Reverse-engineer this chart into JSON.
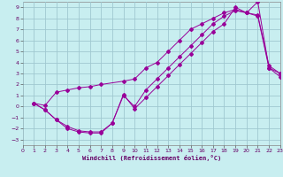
{
  "xlabel": "Windchill (Refroidissement éolien,°C)",
  "background_color": "#c8eef0",
  "grid_color": "#a0c8d0",
  "line_color": "#990099",
  "xlim": [
    0,
    23
  ],
  "ylim": [
    -3.5,
    9.5
  ],
  "xticks": [
    0,
    1,
    2,
    3,
    4,
    5,
    6,
    7,
    8,
    9,
    10,
    11,
    12,
    13,
    14,
    15,
    16,
    17,
    18,
    19,
    20,
    21,
    22,
    23
  ],
  "yticks": [
    -3,
    -2,
    -1,
    0,
    1,
    2,
    3,
    4,
    5,
    6,
    7,
    8,
    9
  ],
  "series1_x": [
    1,
    2,
    3,
    4,
    5,
    6,
    7,
    9,
    10,
    11,
    12,
    13,
    14,
    15,
    16,
    17,
    18,
    19,
    20,
    21,
    22,
    23
  ],
  "series1_y": [
    0.3,
    0.1,
    1.3,
    1.5,
    1.7,
    1.8,
    2.0,
    2.3,
    2.5,
    3.5,
    4.0,
    5.0,
    6.0,
    7.0,
    7.5,
    8.0,
    8.5,
    8.8,
    8.5,
    8.2,
    3.5,
    3.0
  ],
  "series2_x": [
    1,
    2,
    3,
    4,
    5,
    6,
    7,
    8,
    9,
    10,
    11,
    12,
    13,
    14,
    15,
    16,
    17,
    18,
    19,
    20,
    21,
    22,
    23
  ],
  "series2_y": [
    0.3,
    -0.3,
    -1.2,
    -1.8,
    -2.2,
    -2.3,
    -2.3,
    -1.5,
    1.0,
    0.0,
    1.5,
    2.5,
    3.5,
    4.5,
    5.5,
    6.5,
    7.5,
    8.2,
    8.7,
    8.5,
    8.3,
    3.7,
    3.0
  ],
  "series3_x": [
    1,
    2,
    3,
    4,
    5,
    6,
    7,
    8,
    9,
    10,
    11,
    12,
    13,
    14,
    15,
    16,
    17,
    18,
    19,
    20,
    21,
    22,
    23
  ],
  "series3_y": [
    0.3,
    -0.3,
    -1.2,
    -2.0,
    -2.3,
    -2.4,
    -2.4,
    -1.5,
    1.1,
    -0.2,
    0.8,
    1.8,
    2.8,
    3.8,
    4.8,
    5.8,
    6.8,
    7.5,
    9.0,
    8.5,
    9.5,
    3.5,
    2.7
  ]
}
